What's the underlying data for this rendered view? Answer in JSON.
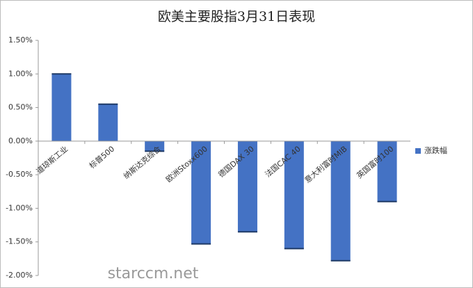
{
  "chart_data": {
    "type": "bar",
    "title": "欧美主要股指3月31日表现",
    "categories": [
      "道琼斯工业",
      "标普500",
      "纳斯达克综合",
      "欧洲Stoxx600",
      "德国DAX 30",
      "法国CAC 40",
      "意大利富时MIB",
      "英国富时100"
    ],
    "series": [
      {
        "name": "涨跌幅",
        "color": "#4472c4",
        "values": [
          1.0,
          0.55,
          -0.15,
          -1.53,
          -1.35,
          -1.6,
          -1.78,
          -0.9
        ]
      }
    ],
    "ylim": [
      -2.0,
      1.5
    ],
    "yticks": [
      {
        "value": -2.0,
        "label": "-2.00%"
      },
      {
        "value": -1.5,
        "label": "-1.50%"
      },
      {
        "value": -1.0,
        "label": "-1.00%"
      },
      {
        "value": -0.5,
        "label": "-0.50%"
      },
      {
        "value": 0,
        "label": "0.00%"
      },
      {
        "value": 0.5,
        "label": "0.50%"
      },
      {
        "value": 1.0,
        "label": "1.00%"
      },
      {
        "value": 1.5,
        "label": "1.50%"
      }
    ],
    "grid": false,
    "legend": "right",
    "watermark": "starccm.net"
  }
}
